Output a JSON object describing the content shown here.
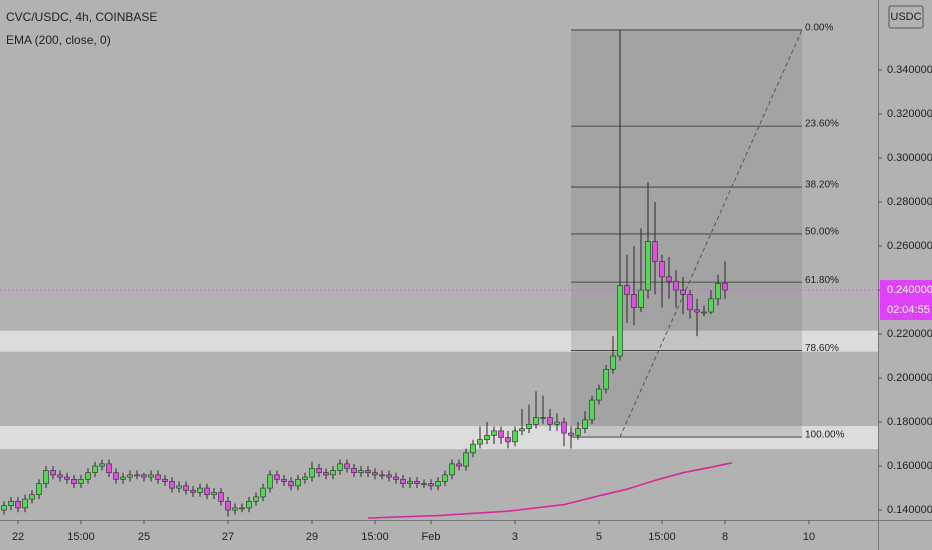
{
  "chart_data": {
    "type": "candlestick",
    "title": "CVC/USDC, 4h, COINBASE",
    "currency": "USDC",
    "xlim": [
      -2.571,
      122.857
    ],
    "ylim": [
      0.1355,
      0.3718
    ],
    "xticks": [
      {
        "value": 0,
        "label": "22"
      },
      {
        "value": 9,
        "label": "15:00"
      },
      {
        "value": 18,
        "label": "25"
      },
      {
        "value": 30,
        "label": "27"
      },
      {
        "value": 42,
        "label": "29"
      },
      {
        "value": 51,
        "label": "15:00"
      },
      {
        "value": 59,
        "label": "Feb"
      },
      {
        "value": 71,
        "label": "3"
      },
      {
        "value": 83,
        "label": "5"
      },
      {
        "value": 92,
        "label": "15:00"
      },
      {
        "value": 101,
        "label": "8"
      },
      {
        "value": 113,
        "label": "10"
      }
    ],
    "yticks": [
      {
        "value": 0.14,
        "label": "0.140000"
      },
      {
        "value": 0.16,
        "label": "0.160000"
      },
      {
        "value": 0.18,
        "label": "0.180000"
      },
      {
        "value": 0.2,
        "label": "0.200000"
      },
      {
        "value": 0.22,
        "label": "0.220000"
      },
      {
        "value": 0.24,
        "label": "0.240000"
      },
      {
        "value": 0.26,
        "label": "0.260000"
      },
      {
        "value": 0.28,
        "label": "0.280000"
      },
      {
        "value": 0.3,
        "label": "0.300000"
      },
      {
        "value": 0.32,
        "label": "0.320000"
      },
      {
        "value": 0.34,
        "label": "0.340000"
      }
    ],
    "up_color": "#52d852",
    "down_color": "#e050e0",
    "wick_color": "#2a2a2a",
    "x": [
      -2,
      -1,
      0,
      1,
      2,
      3,
      4,
      5,
      6,
      7,
      8,
      9,
      10,
      11,
      12,
      13,
      14,
      15,
      16,
      17,
      18,
      19,
      20,
      21,
      22,
      23,
      24,
      25,
      26,
      27,
      28,
      29,
      30,
      31,
      32,
      33,
      34,
      35,
      36,
      37,
      38,
      39,
      40,
      41,
      42,
      43,
      44,
      45,
      46,
      47,
      48,
      49,
      50,
      51,
      52,
      53,
      54,
      55,
      56,
      57,
      58,
      59,
      60,
      61,
      62,
      63,
      64,
      65,
      66,
      67,
      68,
      69,
      70,
      71,
      72,
      73,
      74,
      75,
      76,
      77,
      78,
      79,
      80,
      81,
      82,
      83,
      84,
      85,
      86,
      87,
      88,
      89,
      90,
      91,
      92,
      93,
      94,
      95,
      96,
      97,
      98,
      99,
      100,
      101
    ],
    "open": [
      0.14,
      0.142,
      0.144,
      0.141,
      0.145,
      0.147,
      0.152,
      0.158,
      0.156,
      0.155,
      0.154,
      0.152,
      0.154,
      0.157,
      0.16,
      0.161,
      0.157,
      0.154,
      0.155,
      0.156,
      0.156,
      0.155,
      0.156,
      0.154,
      0.153,
      0.15,
      0.151,
      0.149,
      0.148,
      0.15,
      0.147,
      0.148,
      0.144,
      0.14,
      0.141,
      0.141,
      0.144,
      0.146,
      0.15,
      0.156,
      0.154,
      0.153,
      0.151,
      0.154,
      0.155,
      0.159,
      0.157,
      0.156,
      0.158,
      0.161,
      0.159,
      0.157,
      0.158,
      0.157,
      0.156,
      0.156,
      0.155,
      0.154,
      0.152,
      0.153,
      0.152,
      0.152,
      0.151,
      0.153,
      0.156,
      0.161,
      0.16,
      0.166,
      0.17,
      0.172,
      0.174,
      0.176,
      0.173,
      0.171,
      0.176,
      0.177,
      0.179,
      0.182,
      0.182,
      0.179,
      0.18,
      0.175,
      0.174,
      0.177,
      0.181,
      0.19,
      0.195,
      0.204,
      0.21,
      0.242,
      0.238,
      0.232,
      0.24,
      0.262,
      0.253,
      0.246,
      0.244,
      0.24,
      0.238,
      0.231,
      0.23,
      0.23,
      0.236,
      0.243
    ],
    "high": [
      0.144,
      0.146,
      0.146,
      0.147,
      0.149,
      0.154,
      0.16,
      0.16,
      0.158,
      0.157,
      0.156,
      0.156,
      0.159,
      0.162,
      0.163,
      0.163,
      0.159,
      0.157,
      0.158,
      0.158,
      0.157,
      0.158,
      0.158,
      0.156,
      0.155,
      0.153,
      0.153,
      0.151,
      0.152,
      0.152,
      0.15,
      0.15,
      0.146,
      0.143,
      0.143,
      0.146,
      0.148,
      0.152,
      0.158,
      0.158,
      0.156,
      0.155,
      0.156,
      0.157,
      0.162,
      0.161,
      0.159,
      0.16,
      0.163,
      0.163,
      0.161,
      0.16,
      0.16,
      0.159,
      0.158,
      0.158,
      0.157,
      0.156,
      0.155,
      0.155,
      0.154,
      0.154,
      0.155,
      0.158,
      0.163,
      0.163,
      0.168,
      0.172,
      0.178,
      0.18,
      0.178,
      0.178,
      0.176,
      0.178,
      0.186,
      0.188,
      0.194,
      0.192,
      0.186,
      0.184,
      0.182,
      0.178,
      0.18,
      0.185,
      0.192,
      0.197,
      0.206,
      0.219,
      0.358,
      0.256,
      0.26,
      0.268,
      0.289,
      0.28,
      0.256,
      0.255,
      0.249,
      0.246,
      0.24,
      0.236,
      0.233,
      0.24,
      0.247,
      0.253
    ],
    "low": [
      0.138,
      0.14,
      0.139,
      0.139,
      0.143,
      0.145,
      0.15,
      0.154,
      0.153,
      0.152,
      0.15,
      0.15,
      0.152,
      0.155,
      0.158,
      0.155,
      0.152,
      0.152,
      0.153,
      0.154,
      0.153,
      0.153,
      0.152,
      0.151,
      0.148,
      0.148,
      0.147,
      0.146,
      0.146,
      0.145,
      0.145,
      0.142,
      0.137,
      0.138,
      0.139,
      0.139,
      0.142,
      0.144,
      0.148,
      0.152,
      0.151,
      0.149,
      0.149,
      0.152,
      0.153,
      0.155,
      0.154,
      0.154,
      0.156,
      0.157,
      0.155,
      0.155,
      0.155,
      0.154,
      0.154,
      0.153,
      0.152,
      0.15,
      0.15,
      0.15,
      0.15,
      0.149,
      0.149,
      0.151,
      0.154,
      0.158,
      0.158,
      0.164,
      0.168,
      0.17,
      0.17,
      0.17,
      0.168,
      0.169,
      0.174,
      0.175,
      0.177,
      0.179,
      0.176,
      0.176,
      0.169,
      0.168,
      0.172,
      0.175,
      0.179,
      0.188,
      0.193,
      0.202,
      0.208,
      0.225,
      0.224,
      0.23,
      0.236,
      0.238,
      0.232,
      0.236,
      0.232,
      0.229,
      0.227,
      0.219,
      0.228,
      0.229,
      0.233,
      0.236
    ],
    "close": [
      0.142,
      0.144,
      0.141,
      0.145,
      0.147,
      0.152,
      0.158,
      0.156,
      0.155,
      0.154,
      0.152,
      0.154,
      0.157,
      0.16,
      0.161,
      0.157,
      0.154,
      0.155,
      0.156,
      0.156,
      0.155,
      0.156,
      0.154,
      0.153,
      0.15,
      0.151,
      0.149,
      0.148,
      0.15,
      0.147,
      0.148,
      0.144,
      0.14,
      0.141,
      0.141,
      0.144,
      0.146,
      0.15,
      0.156,
      0.154,
      0.153,
      0.151,
      0.154,
      0.155,
      0.159,
      0.157,
      0.156,
      0.158,
      0.161,
      0.159,
      0.157,
      0.158,
      0.157,
      0.156,
      0.156,
      0.155,
      0.154,
      0.152,
      0.153,
      0.152,
      0.152,
      0.151,
      0.153,
      0.156,
      0.161,
      0.16,
      0.166,
      0.17,
      0.172,
      0.174,
      0.176,
      0.173,
      0.171,
      0.176,
      0.177,
      0.179,
      0.182,
      0.182,
      0.179,
      0.18,
      0.175,
      0.174,
      0.177,
      0.181,
      0.19,
      0.195,
      0.204,
      0.21,
      0.242,
      0.238,
      0.232,
      0.24,
      0.262,
      0.253,
      0.246,
      0.244,
      0.24,
      0.238,
      0.231,
      0.23,
      0.23,
      0.236,
      0.243,
      0.24
    ],
    "ema": {
      "name": "EMA (200, close, 0)",
      "color": "#d42a9a",
      "x": [
        50,
        60,
        70,
        78,
        83,
        87,
        91,
        95,
        99,
        102
      ],
      "values": [
        0.1364,
        0.1375,
        0.1395,
        0.1425,
        0.1465,
        0.1495,
        0.1535,
        0.157,
        0.1595,
        0.1615
      ]
    },
    "zones": [
      [
        0.212,
        0.2215
      ],
      [
        0.1677,
        0.1782
      ]
    ],
    "fib": {
      "x_start": 79,
      "x_end": 112,
      "levels": [
        {
          "value": 0.3582,
          "label": "0.00%"
        },
        {
          "value": 0.3145,
          "label": "23.60%"
        },
        {
          "value": 0.2868,
          "label": "38.20%"
        },
        {
          "value": 0.2655,
          "label": "50.00%"
        },
        {
          "value": 0.2436,
          "label": "61.80%"
        },
        {
          "value": 0.2125,
          "label": "78.60%"
        },
        {
          "value": 0.1732,
          "label": "100.00%"
        }
      ]
    },
    "last_price": {
      "value": 0.24,
      "label": "0.240000",
      "color": "#e040fb"
    },
    "countdown": "02:04:55"
  }
}
